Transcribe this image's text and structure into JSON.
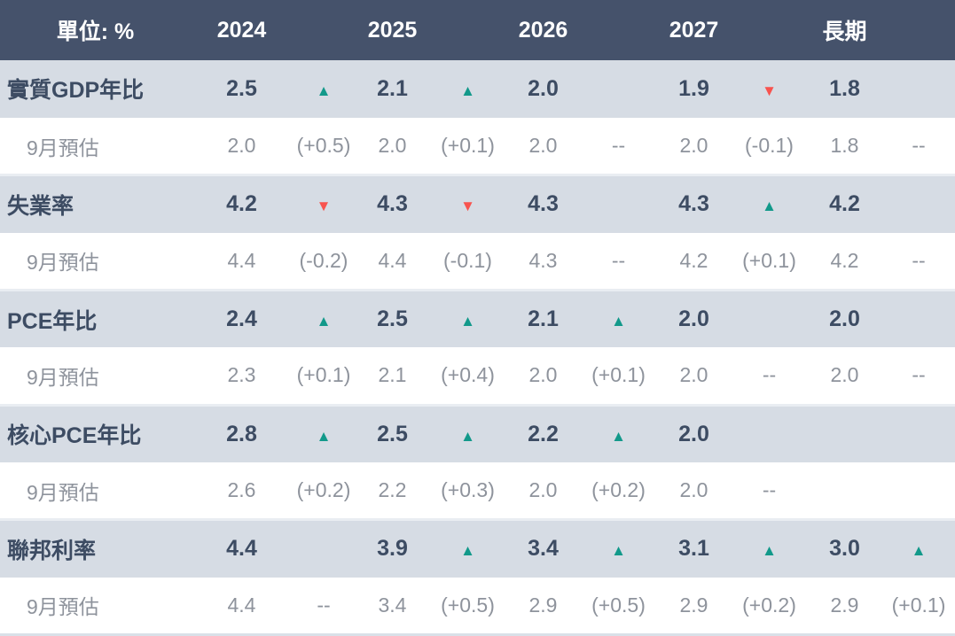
{
  "table": {
    "unit_label": "單位: %",
    "columns": [
      "2024",
      "2025",
      "2026",
      "2027",
      "長期"
    ],
    "rows": [
      {
        "type": "main",
        "label": "實質GDP年比",
        "cells": [
          {
            "value": "2.5",
            "change": "up"
          },
          {
            "value": "2.1",
            "change": "up"
          },
          {
            "value": "2.0",
            "change": ""
          },
          {
            "value": "1.9",
            "change": "down"
          },
          {
            "value": "1.8",
            "change": ""
          }
        ]
      },
      {
        "type": "sub",
        "label": "9月預估",
        "cells": [
          {
            "value": "2.0",
            "change": "(+0.5)"
          },
          {
            "value": "2.0",
            "change": "(+0.1)"
          },
          {
            "value": "2.0",
            "change": "--"
          },
          {
            "value": "2.0",
            "change": "(-0.1)"
          },
          {
            "value": "1.8",
            "change": "--"
          }
        ]
      },
      {
        "type": "main",
        "label": "失業率",
        "cells": [
          {
            "value": "4.2",
            "change": "down"
          },
          {
            "value": "4.3",
            "change": "down"
          },
          {
            "value": "4.3",
            "change": ""
          },
          {
            "value": "4.3",
            "change": "up"
          },
          {
            "value": "4.2",
            "change": ""
          }
        ]
      },
      {
        "type": "sub",
        "label": "9月預估",
        "cells": [
          {
            "value": "4.4",
            "change": "(-0.2)"
          },
          {
            "value": "4.4",
            "change": "(-0.1)"
          },
          {
            "value": "4.3",
            "change": "--"
          },
          {
            "value": "4.2",
            "change": "(+0.1)"
          },
          {
            "value": "4.2",
            "change": "--"
          }
        ]
      },
      {
        "type": "main",
        "label": "PCE年比",
        "cells": [
          {
            "value": "2.4",
            "change": "up"
          },
          {
            "value": "2.5",
            "change": "up"
          },
          {
            "value": "2.1",
            "change": "up"
          },
          {
            "value": "2.0",
            "change": ""
          },
          {
            "value": "2.0",
            "change": ""
          }
        ]
      },
      {
        "type": "sub",
        "label": "9月預估",
        "cells": [
          {
            "value": "2.3",
            "change": "(+0.1)"
          },
          {
            "value": "2.1",
            "change": "(+0.4)"
          },
          {
            "value": "2.0",
            "change": "(+0.1)"
          },
          {
            "value": "2.0",
            "change": "--"
          },
          {
            "value": "2.0",
            "change": "--"
          }
        ]
      },
      {
        "type": "main",
        "label": "核心PCE年比",
        "cells": [
          {
            "value": "2.8",
            "change": "up"
          },
          {
            "value": "2.5",
            "change": "up"
          },
          {
            "value": "2.2",
            "change": "up"
          },
          {
            "value": "2.0",
            "change": ""
          },
          {
            "value": "",
            "change": ""
          }
        ]
      },
      {
        "type": "sub",
        "label": "9月預估",
        "cells": [
          {
            "value": "2.6",
            "change": "(+0.2)"
          },
          {
            "value": "2.2",
            "change": "(+0.3)"
          },
          {
            "value": "2.0",
            "change": "(+0.2)"
          },
          {
            "value": "2.0",
            "change": "--"
          },
          {
            "value": "",
            "change": ""
          }
        ]
      },
      {
        "type": "main",
        "label": "聯邦利率",
        "cells": [
          {
            "value": "4.4",
            "change": ""
          },
          {
            "value": "3.9",
            "change": "up"
          },
          {
            "value": "3.4",
            "change": "up"
          },
          {
            "value": "3.1",
            "change": "up"
          },
          {
            "value": "3.0",
            "change": "up"
          }
        ]
      },
      {
        "type": "sub",
        "label": "9月預估",
        "cells": [
          {
            "value": "4.4",
            "change": "--"
          },
          {
            "value": "3.4",
            "change": "(+0.5)"
          },
          {
            "value": "2.9",
            "change": "(+0.5)"
          },
          {
            "value": "2.9",
            "change": "(+0.2)"
          },
          {
            "value": "2.9",
            "change": "(+0.1)"
          }
        ]
      }
    ]
  },
  "icons": {
    "up_arrow": "▲",
    "down_arrow": "▼"
  },
  "colors": {
    "header_bg": "#45526B",
    "alt_row_bg": "#D6DCE4",
    "main_text": "#3D4C63",
    "sub_text": "#8E939C",
    "up": "#12998A",
    "down": "#F8534E"
  }
}
